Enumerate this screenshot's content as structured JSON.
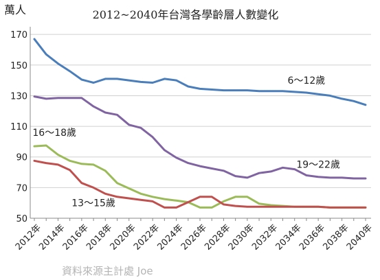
{
  "chart_data": {
    "type": "line",
    "title": "2012~2040年台灣各學齡層人數變化",
    "ylabel": "萬人",
    "source": "資料來源主計處 Joe",
    "ylim": [
      50,
      175
    ],
    "yticks": [
      50,
      70,
      90,
      110,
      130,
      150,
      170
    ],
    "grid": true,
    "x": [
      "2012年",
      "2013年",
      "2014年",
      "2015年",
      "2016年",
      "2017年",
      "2018年",
      "2019年",
      "2020年",
      "2021年",
      "2022年",
      "2023年",
      "2024年",
      "2025年",
      "2026年",
      "2027年",
      "2028年",
      "2029年",
      "2030年",
      "2031年",
      "2032年",
      "2033年",
      "2034年",
      "2035年",
      "2036年",
      "2037年",
      "2038年",
      "2039年",
      "2040年"
    ],
    "xticklabels": [
      "2012年",
      "2014年",
      "2016年",
      "2018年",
      "2020年",
      "2022年",
      "2024年",
      "2026年",
      "2028年",
      "2030年",
      "2032年",
      "2034年",
      "2036年",
      "2038年",
      "2040年"
    ],
    "series": [
      {
        "name": "6～12歲",
        "color": "#4a7ebb",
        "values": [
          167,
          157,
          151,
          146,
          140.5,
          138.5,
          141,
          141,
          140,
          139,
          138.5,
          141,
          140,
          136,
          134.5,
          134,
          133.5,
          133.5,
          133.5,
          133,
          133,
          133,
          132.5,
          132,
          131,
          130,
          128,
          126.5,
          124
        ]
      },
      {
        "name": "19～22歲",
        "color": "#8064a2",
        "values": [
          129.5,
          128,
          128.5,
          128.5,
          128.5,
          123,
          119,
          117.5,
          111,
          109,
          103,
          94.5,
          89.5,
          86,
          84,
          82.5,
          81,
          77.5,
          76.5,
          79.5,
          80.5,
          83,
          82,
          78,
          77,
          76.5,
          76.5,
          76,
          76
        ]
      },
      {
        "name": "16～18歲",
        "color": "#9bbb59",
        "values": [
          97,
          97.5,
          91.5,
          87.5,
          85.5,
          85,
          81,
          73,
          69.5,
          66,
          64,
          62.5,
          61.5,
          60.5,
          57,
          57,
          61,
          64,
          64,
          59.5,
          58.5,
          58,
          57.5,
          57.5,
          57.5,
          57,
          57,
          57,
          57
        ]
      },
      {
        "name": "13～15歲",
        "color": "#c0504d",
        "values": [
          87.5,
          86,
          85,
          81.5,
          73,
          70,
          66,
          64,
          63,
          62,
          61,
          57,
          57,
          60.5,
          64,
          64,
          59,
          58,
          57.5,
          57.5,
          57.5,
          57.5,
          57.5,
          57.5,
          57.5,
          57,
          57,
          57,
          57
        ]
      }
    ]
  }
}
